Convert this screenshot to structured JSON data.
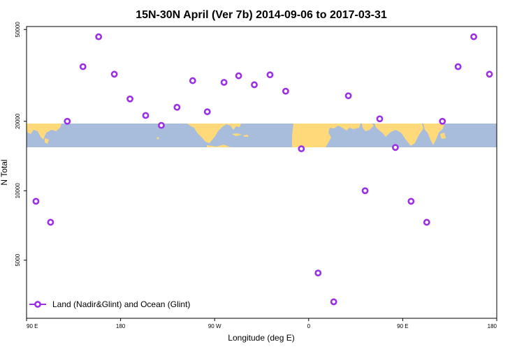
{
  "chart_data": {
    "type": "scatter",
    "title": "15N-30N April (Ver 7b)   2014-09-06 to 2017-03-31",
    "xlabel": "Longitude (deg E)",
    "ylabel": "N Total",
    "x_ticks": [
      {
        "value": 90,
        "label": "90 E"
      },
      {
        "value": 180,
        "label": "180"
      },
      {
        "value": 270,
        "label": "90 W"
      },
      {
        "value": 360,
        "label": "0"
      },
      {
        "value": 450,
        "label": "90 E"
      },
      {
        "value": 540,
        "label": "180"
      }
    ],
    "y_ticks": [
      {
        "value": 5000,
        "label": "5000"
      },
      {
        "value": 10000,
        "label": "10000"
      },
      {
        "value": 20000,
        "label": "20000"
      },
      {
        "value": 50000,
        "label": "50000"
      }
    ],
    "xlim": [
      90,
      540
    ],
    "ylim": [
      2800,
      51500
    ],
    "y_scale": "log",
    "grid": false,
    "legend_position": "bottom-left",
    "map_band": {
      "lat_range": "15N-30N",
      "ocean_color": "#a7bddb",
      "land_color": "#ffd97a"
    },
    "series": [
      {
        "name": "Land (Nadir&Glint) and Ocean (Glint)",
        "color": "#9b2fe6",
        "marker": "open-circle",
        "points": [
          {
            "x": 99,
            "y": 9000
          },
          {
            "x": 113,
            "y": 7300
          },
          {
            "x": 129,
            "y": 20000
          },
          {
            "x": 144,
            "y": 34500
          },
          {
            "x": 159,
            "y": 46500
          },
          {
            "x": 174,
            "y": 32000
          },
          {
            "x": 189,
            "y": 25000
          },
          {
            "x": 204,
            "y": 21200
          },
          {
            "x": 219,
            "y": 19200
          },
          {
            "x": 234,
            "y": 23000
          },
          {
            "x": 249,
            "y": 30000
          },
          {
            "x": 263,
            "y": 22000
          },
          {
            "x": 279,
            "y": 29500
          },
          {
            "x": 293,
            "y": 31500
          },
          {
            "x": 308,
            "y": 28800
          },
          {
            "x": 323,
            "y": 31800
          },
          {
            "x": 338,
            "y": 27000
          },
          {
            "x": 353,
            "y": 15200
          },
          {
            "x": 369,
            "y": 4400
          },
          {
            "x": 384,
            "y": 3300
          },
          {
            "x": 398,
            "y": 25800
          },
          {
            "x": 414,
            "y": 10000
          },
          {
            "x": 428,
            "y": 20500
          },
          {
            "x": 443,
            "y": 15400
          },
          {
            "x": 458,
            "y": 9000
          },
          {
            "x": 473,
            "y": 7300
          },
          {
            "x": 488,
            "y": 20000
          },
          {
            "x": 503,
            "y": 34500
          },
          {
            "x": 518,
            "y": 46500
          },
          {
            "x": 533,
            "y": 32000
          }
        ]
      }
    ]
  }
}
